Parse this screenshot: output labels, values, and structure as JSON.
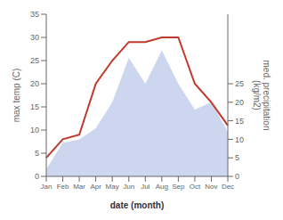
{
  "chart_data": {
    "type": "line",
    "categories": [
      "Jan",
      "Feb",
      "Mar",
      "Apr",
      "May",
      "Jun",
      "Jul",
      "Aug",
      "Sep",
      "Oct",
      "Nov",
      "Dec"
    ],
    "x_label": "date (month)",
    "y_label": "max temp (C)",
    "y2_label": "med. precipitation\n(kg/m2)",
    "series": [
      {
        "type": "area",
        "axis": "y2",
        "color": "#b8c4e8",
        "values": [
          2,
          9,
          10,
          13,
          20,
          32,
          25,
          34,
          25,
          18,
          20,
          12
        ]
      },
      {
        "type": "line",
        "axis": "y",
        "color": "#c0392b",
        "values": [
          4,
          8,
          9,
          20,
          25,
          29,
          29,
          30,
          30,
          20,
          16,
          11
        ]
      }
    ],
    "ylim": [
      0,
      35
    ],
    "yticks": [
      0,
      5,
      10,
      15,
      20,
      25,
      30,
      35
    ],
    "y2lim": [
      0,
      43.75
    ],
    "y2ticks": [
      0,
      5,
      10,
      15,
      20,
      25
    ],
    "grid": false
  }
}
